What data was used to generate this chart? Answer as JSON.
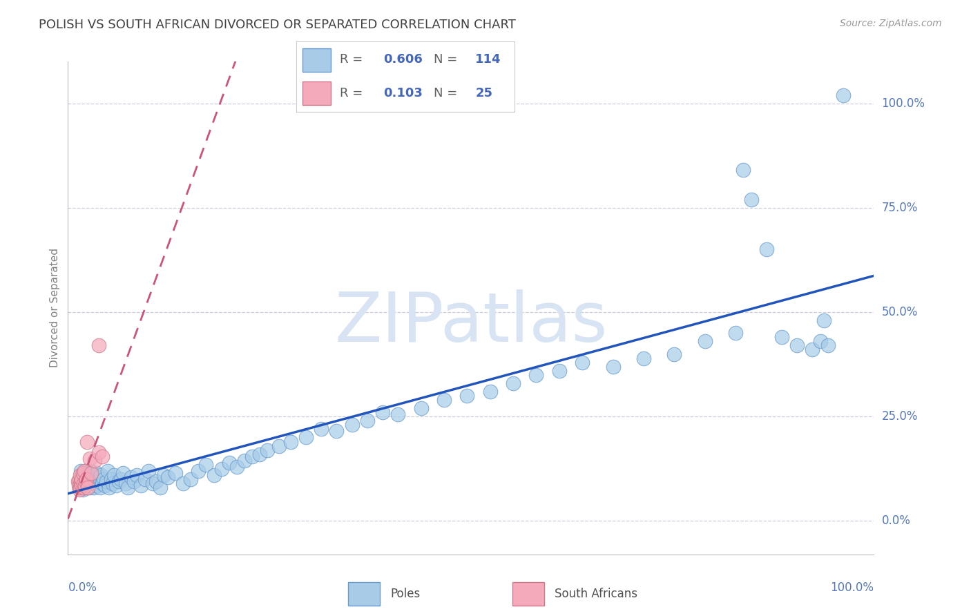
{
  "title": "POLISH VS SOUTH AFRICAN DIVORCED OR SEPARATED CORRELATION CHART",
  "source": "Source: ZipAtlas.com",
  "ylabel": "Divorced or Separated",
  "ytick_labels": [
    "0.0%",
    "25.0%",
    "50.0%",
    "75.0%",
    "100.0%"
  ],
  "ytick_values": [
    0.0,
    0.25,
    0.5,
    0.75,
    1.0
  ],
  "xlim": [
    -0.01,
    1.04
  ],
  "ylim": [
    -0.08,
    1.1
  ],
  "poles_R": 0.606,
  "poles_N": 114,
  "sa_R": 0.103,
  "sa_N": 25,
  "poles_fill_color": "#A8CCE8",
  "poles_edge_color": "#6699CC",
  "sa_fill_color": "#F4AABB",
  "sa_edge_color": "#CC7788",
  "poles_line_color": "#2255BB",
  "sa_line_color": "#CC5577",
  "watermark_color": "#D8E4F4",
  "watermark": "ZIPatlas",
  "background_color": "#FFFFFF",
  "grid_color": "#CCCCDD",
  "title_color": "#404040",
  "label_color": "#5577BB",
  "axis_color": "#BBBBBB",
  "legend_text_color": "#4466BB",
  "poles_x": [
    0.005,
    0.005,
    0.005,
    0.007,
    0.007,
    0.008,
    0.008,
    0.009,
    0.009,
    0.01,
    0.01,
    0.01,
    0.01,
    0.011,
    0.011,
    0.012,
    0.012,
    0.013,
    0.013,
    0.014,
    0.014,
    0.015,
    0.015,
    0.016,
    0.016,
    0.017,
    0.018,
    0.018,
    0.019,
    0.02,
    0.021,
    0.022,
    0.022,
    0.023,
    0.024,
    0.025,
    0.026,
    0.027,
    0.028,
    0.03,
    0.031,
    0.032,
    0.033,
    0.035,
    0.036,
    0.038,
    0.04,
    0.042,
    0.044,
    0.046,
    0.048,
    0.05,
    0.053,
    0.056,
    0.059,
    0.062,
    0.065,
    0.068,
    0.072,
    0.076,
    0.08,
    0.085,
    0.09,
    0.095,
    0.1,
    0.105,
    0.11,
    0.115,
    0.12,
    0.13,
    0.14,
    0.15,
    0.16,
    0.17,
    0.18,
    0.19,
    0.2,
    0.21,
    0.22,
    0.23,
    0.24,
    0.25,
    0.265,
    0.28,
    0.3,
    0.32,
    0.34,
    0.36,
    0.38,
    0.4,
    0.42,
    0.45,
    0.48,
    0.51,
    0.54,
    0.57,
    0.6,
    0.63,
    0.66,
    0.7,
    0.74,
    0.78,
    0.82,
    0.86,
    0.87,
    0.88,
    0.9,
    0.92,
    0.94,
    0.96,
    0.97,
    0.975,
    0.98,
    1.0
  ],
  "poles_y": [
    0.09,
    0.085,
    0.08,
    0.12,
    0.095,
    0.1,
    0.085,
    0.11,
    0.075,
    0.105,
    0.09,
    0.095,
    0.08,
    0.115,
    0.085,
    0.1,
    0.09,
    0.12,
    0.085,
    0.095,
    0.08,
    0.11,
    0.09,
    0.1,
    0.085,
    0.115,
    0.095,
    0.08,
    0.12,
    0.09,
    0.105,
    0.085,
    0.095,
    0.11,
    0.08,
    0.1,
    0.09,
    0.115,
    0.085,
    0.095,
    0.105,
    0.08,
    0.11,
    0.09,
    0.1,
    0.085,
    0.095,
    0.12,
    0.08,
    0.1,
    0.09,
    0.11,
    0.085,
    0.095,
    0.1,
    0.115,
    0.09,
    0.08,
    0.105,
    0.095,
    0.11,
    0.085,
    0.1,
    0.12,
    0.09,
    0.095,
    0.08,
    0.11,
    0.105,
    0.115,
    0.09,
    0.1,
    0.12,
    0.135,
    0.11,
    0.125,
    0.14,
    0.13,
    0.145,
    0.155,
    0.16,
    0.17,
    0.18,
    0.19,
    0.2,
    0.22,
    0.215,
    0.23,
    0.24,
    0.26,
    0.255,
    0.27,
    0.29,
    0.3,
    0.31,
    0.33,
    0.35,
    0.36,
    0.38,
    0.37,
    0.39,
    0.4,
    0.43,
    0.45,
    0.84,
    0.77,
    0.65,
    0.44,
    0.42,
    0.41,
    0.43,
    0.48,
    0.42,
    1.02
  ],
  "sa_x": [
    0.003,
    0.004,
    0.005,
    0.005,
    0.006,
    0.006,
    0.007,
    0.007,
    0.008,
    0.008,
    0.009,
    0.01,
    0.01,
    0.011,
    0.012,
    0.013,
    0.014,
    0.015,
    0.016,
    0.018,
    0.02,
    0.025,
    0.03,
    0.035,
    0.03
  ],
  "sa_y": [
    0.095,
    0.085,
    0.1,
    0.075,
    0.11,
    0.08,
    0.09,
    0.095,
    0.085,
    0.1,
    0.115,
    0.08,
    0.09,
    0.12,
    0.085,
    0.095,
    0.1,
    0.19,
    0.08,
    0.15,
    0.115,
    0.145,
    0.165,
    0.155,
    0.42
  ]
}
